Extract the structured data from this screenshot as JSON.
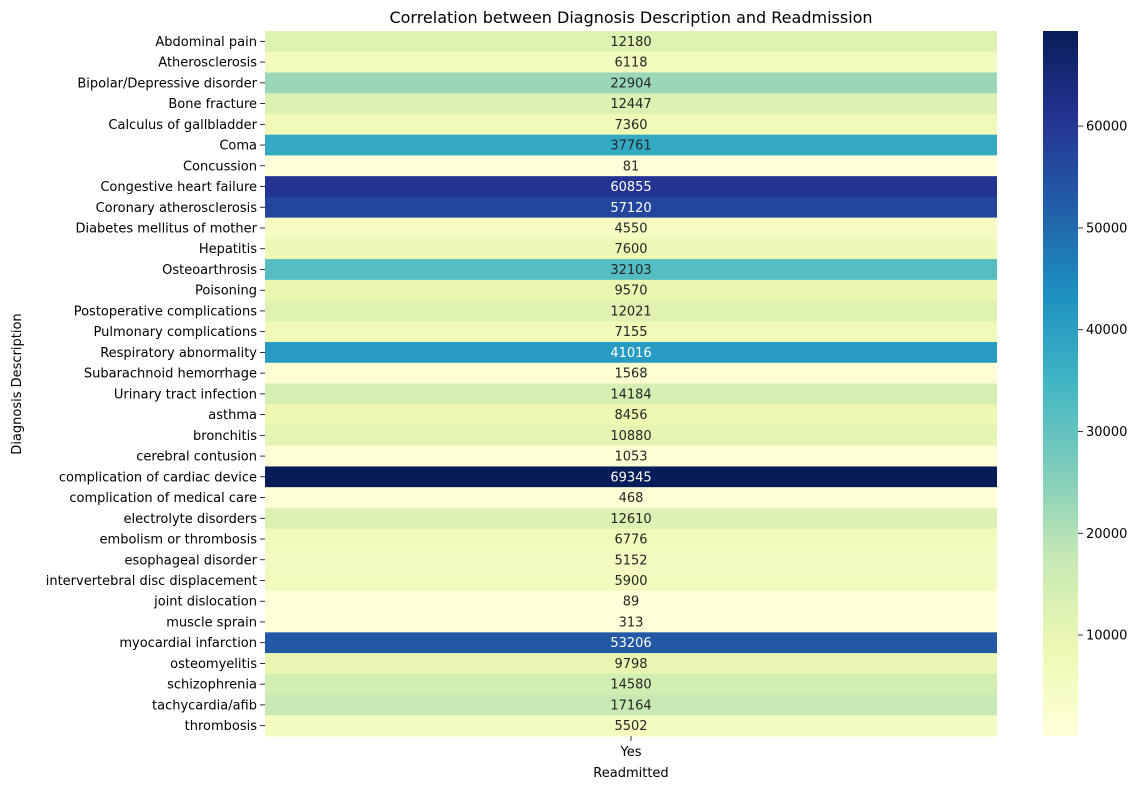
{
  "chart_data": {
    "type": "heatmap",
    "title": "Correlation between Diagnosis Description and Readmission",
    "xlabel": "Readmitted",
    "ylabel": "Diagnosis Description",
    "x_categories": [
      "Yes"
    ],
    "y_categories": [
      "Abdominal pain",
      "Atherosclerosis",
      "Bipolar/Depressive disorder",
      "Bone fracture",
      "Calculus of gallbladder",
      "Coma",
      "Concussion",
      "Congestive heart failure",
      "Coronary atherosclerosis",
      "Diabetes mellitus of mother",
      "Hepatitis",
      "Osteoarthrosis",
      "Poisoning",
      "Postoperative complications",
      "Pulmonary complications",
      "Respiratory abnormality",
      "Subarachnoid hemorrhage",
      "Urinary tract infection",
      "asthma",
      "bronchitis",
      "cerebral contusion",
      "complication of cardiac device",
      "complication of medical care",
      "electrolyte disorders",
      "embolism or thrombosis",
      "esophageal disorder",
      "intervertebral disc displacement",
      "joint dislocation",
      "muscle sprain",
      "myocardial infarction",
      "osteomyelitis",
      "schizophrenia",
      "tachycardia/afib",
      "thrombosis"
    ],
    "values": [
      12180,
      6118,
      22904,
      12447,
      7360,
      37761,
      81,
      60855,
      57120,
      4550,
      7600,
      32103,
      9570,
      12021,
      7155,
      41016,
      1568,
      14184,
      8456,
      10880,
      1053,
      69345,
      468,
      12610,
      6776,
      5152,
      5900,
      89,
      313,
      53206,
      9798,
      14580,
      17164,
      5502
    ],
    "value_labels": [
      "12180",
      "6118",
      "22904",
      "12447",
      "7360",
      "37761",
      "81",
      "60855",
      "57120",
      "4550",
      "7600",
      "32103",
      "9570",
      "12021",
      "7155",
      "41016",
      "1568",
      "14184",
      "8456",
      "10880",
      "1053",
      "69345",
      "468",
      "12610",
      "6776",
      "5152",
      "5900",
      "89",
      "313",
      "53206",
      "9798",
      "14580",
      "17164",
      "5502"
    ],
    "colormap": "YlGnBu",
    "color_range": [
      81,
      69345
    ],
    "colorbar_ticks": [
      "10000",
      "20000",
      "30000",
      "40000",
      "50000",
      "60000"
    ],
    "colorbar_tick_values": [
      10000,
      20000,
      30000,
      40000,
      50000,
      60000
    ],
    "annotated": true
  }
}
